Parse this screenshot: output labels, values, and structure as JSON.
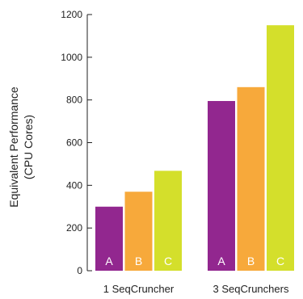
{
  "chart_data": {
    "type": "bar",
    "categories": [
      "1 SeqCruncher",
      "3 SeqCrunchers"
    ],
    "series": [
      {
        "label": "A",
        "values": [
          300,
          795
        ]
      },
      {
        "label": "B",
        "values": [
          370,
          860
        ]
      },
      {
        "label": "C",
        "values": [
          468,
          1150
        ]
      }
    ],
    "ylabel_lines": [
      "Equivalent Performance",
      "(CPU Cores)"
    ],
    "ylim": [
      0,
      1200
    ],
    "yticks": [
      0,
      200,
      400,
      600,
      800,
      1000,
      1200
    ],
    "grid": false,
    "legend": "none",
    "colors": [
      "#92278f",
      "#f7a93b",
      "#d4df2b"
    ]
  }
}
